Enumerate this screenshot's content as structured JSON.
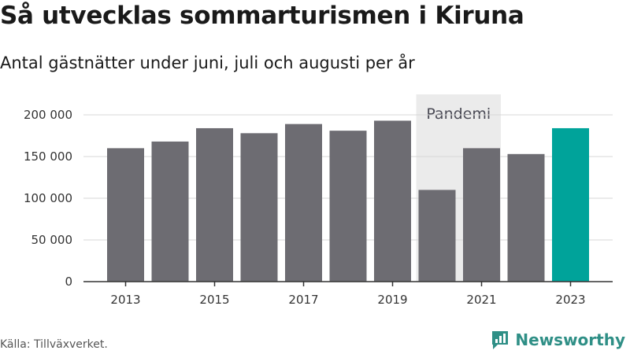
{
  "header": {
    "title": "Så utvecklas sommarturismen i Kiruna",
    "subtitle": "Antal gästnätter under juni, juli och augusti per år"
  },
  "footer": {
    "source": "Källa: Tillväxverket.",
    "logo_text": "Newsworthy"
  },
  "colors": {
    "bar": "#6d6c72",
    "highlight": "#00a39a",
    "band": "#ebebeb",
    "grid": "#d7d7d7",
    "axis": "#333333",
    "logo": "#2f8f86"
  },
  "chart_data": {
    "type": "bar",
    "title": "Så utvecklas sommarturismen i Kiruna",
    "subtitle": "Antal gästnätter under juni, juli och augusti per år",
    "categories": [
      "2013",
      "2014",
      "2015",
      "2016",
      "2017",
      "2018",
      "2019",
      "2020",
      "2021",
      "2022",
      "2023"
    ],
    "values": [
      160000,
      168000,
      184000,
      178000,
      189000,
      181000,
      193000,
      110000,
      160000,
      153000,
      184000
    ],
    "highlight_category": "2023",
    "x_tick_labels": [
      "2013",
      "2015",
      "2017",
      "2019",
      "2021",
      "2023"
    ],
    "y_ticks": [
      0,
      50000,
      100000,
      150000,
      200000
    ],
    "y_tick_labels": [
      "0",
      "50 000",
      "100 000",
      "150 000",
      "200 000"
    ],
    "ylim": [
      0,
      200000
    ],
    "xlabel": "",
    "ylabel": "",
    "grid": true,
    "annotation": {
      "label": "Pandemi",
      "from": "2020",
      "to": "2021"
    }
  }
}
